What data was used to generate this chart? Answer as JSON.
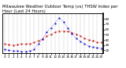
{
  "title": "Milwaukee Weather Outdoor Temp (vs) THSW Index per Hour (Last 24 Hours)",
  "hours": [
    0,
    1,
    2,
    3,
    4,
    5,
    6,
    7,
    8,
    9,
    10,
    11,
    12,
    13,
    14,
    15,
    16,
    17,
    18,
    19,
    20,
    21,
    22,
    23
  ],
  "outdoor_temp": [
    32,
    31,
    30,
    31,
    32,
    32,
    33,
    35,
    38,
    42,
    47,
    51,
    55,
    57,
    57,
    56,
    54,
    51,
    47,
    43,
    40,
    38,
    36,
    35
  ],
  "thsw_index": [
    22,
    20,
    19,
    19,
    18,
    18,
    19,
    22,
    32,
    42,
    55,
    63,
    72,
    82,
    74,
    63,
    52,
    43,
    37,
    32,
    28,
    26,
    25,
    24
  ],
  "temp_color": "#cc0000",
  "thsw_color": "#0000cc",
  "ylim": [
    15,
    90
  ],
  "yticks_right": [
    20,
    30,
    40,
    50,
    60,
    70,
    80
  ],
  "ytick_labels_right": [
    "20",
    "30",
    "40",
    "50",
    "60",
    "70",
    "80"
  ],
  "background_color": "#ffffff",
  "grid_color": "#888888",
  "title_fontsize": 3.8,
  "tick_fontsize": 3.0,
  "figsize": [
    1.6,
    0.87
  ],
  "dpi": 100
}
